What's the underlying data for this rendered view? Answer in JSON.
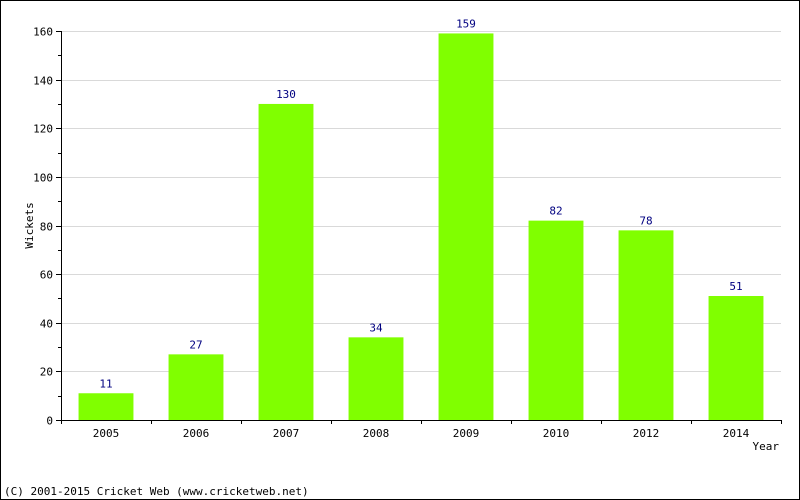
{
  "chart_data": {
    "type": "bar",
    "categories": [
      "2005",
      "2006",
      "2007",
      "2008",
      "2009",
      "2010",
      "2012",
      "2014"
    ],
    "values": [
      11,
      27,
      130,
      34,
      159,
      82,
      78,
      51
    ],
    "data_labels": [
      "11",
      "27",
      "130",
      "34",
      "159",
      "82",
      "78",
      "51"
    ],
    "title": "",
    "xlabel": "Year",
    "ylabel": "Wickets",
    "ylim": [
      0,
      160
    ],
    "yticks": [
      0,
      20,
      40,
      60,
      80,
      100,
      120,
      140,
      160
    ],
    "grid": true,
    "legend": "none"
  },
  "colors": {
    "bar": "#80ff00",
    "grid": "#d9d9d9",
    "axis": "#000000",
    "data_label": "#000080"
  },
  "footer": {
    "copyright": "(C) 2001-2015 Cricket Web (www.cricketweb.net)"
  }
}
